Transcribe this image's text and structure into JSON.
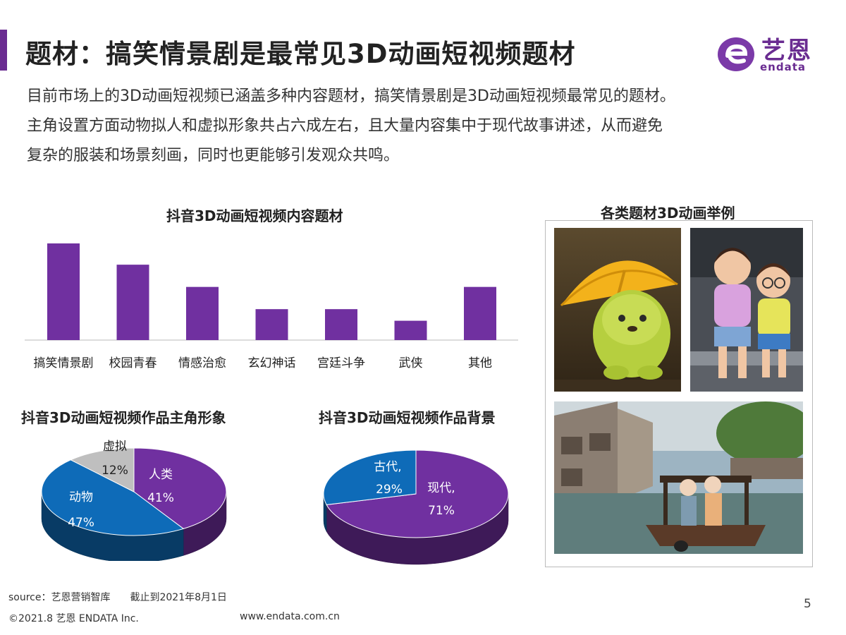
{
  "header": {
    "title": "题材：搞笑情景剧是最常见3D动画短视频题材",
    "logo_cn": "艺恩",
    "logo_en": "endata"
  },
  "intro": {
    "line1": "目前市场上的3D动画短视频已涵盖多种内容题材，搞笑情景剧是3D动画短视频最常见的题材。",
    "line2": "主角设置方面动物拟人和虚拟形象共占六成左右，且大量内容集中于现代故事讲述，从而避免",
    "line3": "复杂的服装和场景刻画，同时也更能够引发观众共鸣。"
  },
  "chart_data": [
    {
      "type": "bar",
      "title": "抖音3D动画短视频内容题材",
      "categories": [
        "搞笑情景剧",
        "校园青春",
        "情感治愈",
        "玄幻神话",
        "宫廷斗争",
        "武侠",
        "其他"
      ],
      "values": [
        100,
        78,
        55,
        32,
        32,
        20,
        55
      ],
      "color": "#7030a0"
    },
    {
      "type": "pie",
      "title": "抖音3D动画短视频作品主角形象",
      "slices": [
        {
          "label": "人类",
          "value": 41,
          "text": "41%",
          "color": "#7030a0"
        },
        {
          "label": "动物",
          "value": 47,
          "text": "47%",
          "color": "#0e6bb8"
        },
        {
          "label": "虚拟",
          "value": 12,
          "text": "12%",
          "color": "#bfbfbf"
        }
      ]
    },
    {
      "type": "pie",
      "title": "抖音3D动画短视频作品背景",
      "slices": [
        {
          "label": "现代,",
          "value": 71,
          "text": "71%",
          "color": "#7030a0"
        },
        {
          "label": "古代,",
          "value": 29,
          "text": "29%",
          "color": "#0e6bb8"
        }
      ]
    }
  ],
  "examples": {
    "title": "各类题材3D动画举例"
  },
  "footer": {
    "source": "source：艺恩营销智库　　截止到2021年8月1日",
    "copyright": "©2021.8 艺恩 ENDATA Inc.",
    "website": "www.endata.com.cn",
    "page": "5"
  },
  "colors": {
    "accent": "#6a2c91",
    "purple": "#7030a0",
    "blue": "#0e6bb8",
    "grey": "#bfbfbf"
  }
}
